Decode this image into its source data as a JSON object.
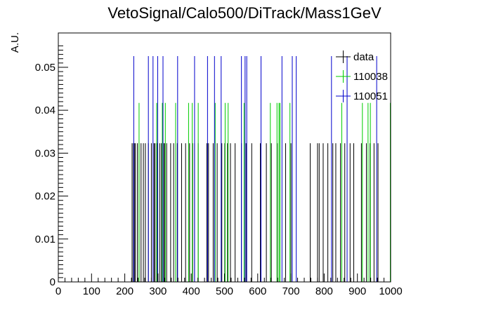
{
  "chart_data": {
    "type": "histogram",
    "title": "VetoSignal/Calo500/DiTrack/Mass1GeV",
    "ylabel": "A.U.",
    "xlabel": "",
    "xlim": [
      0,
      1000
    ],
    "ylim": [
      0,
      0.058
    ],
    "x_ticks": [
      "0",
      "100",
      "200",
      "300",
      "400",
      "500",
      "600",
      "700",
      "800",
      "900",
      "1000"
    ],
    "y_ticks": [
      "0",
      "0.01",
      "0.02",
      "0.03",
      "0.04",
      "0.05"
    ],
    "legend_position": "top-right",
    "series": [
      {
        "name": "data",
        "color": "#000000",
        "x": [
          222,
          226,
          229,
          232,
          238,
          243,
          249,
          256,
          262,
          271,
          280,
          288,
          291,
          298,
          305,
          310,
          318,
          321,
          326,
          338,
          347,
          358,
          371,
          383,
          395,
          404,
          410,
          421,
          447,
          452,
          466,
          478,
          492,
          501,
          509,
          518,
          532,
          551,
          565,
          582,
          608,
          626,
          641,
          659,
          684,
          700,
          758,
          780,
          785,
          797,
          811,
          826,
          835,
          849,
          862,
          878,
          889,
          912,
          927,
          938,
          950,
          962
        ],
        "values": [
          0.0323,
          0.0323,
          0.0323,
          0.0323,
          0.0323,
          0.0323,
          0.0323,
          0.0323,
          0.0323,
          0.0323,
          0.0323,
          0.0323,
          0.0323,
          0.0323,
          0.0323,
          0.0323,
          0.0323,
          0.0323,
          0.0323,
          0.0323,
          0.0323,
          0.0323,
          0.0323,
          0.0323,
          0.0323,
          0.0323,
          0.0323,
          0.0323,
          0.0323,
          0.0323,
          0.0323,
          0.0323,
          0.0323,
          0.0323,
          0.0323,
          0.0323,
          0.0323,
          0.0323,
          0.0323,
          0.0323,
          0.0323,
          0.0323,
          0.0323,
          0.0323,
          0.0323,
          0.0323,
          0.0323,
          0.0323,
          0.0323,
          0.0323,
          0.0323,
          0.0323,
          0.0323,
          0.0323,
          0.0323,
          0.0323,
          0.0323,
          0.0323,
          0.0323,
          0.0323,
          0.0323,
          0.0323
        ]
      },
      {
        "name": "110038",
        "color": "#00cc00",
        "x": [
          243,
          296,
          313,
          322,
          353,
          392,
          403,
          421,
          472,
          502,
          511,
          559,
          638,
          658,
          664,
          667,
          697,
          853,
          915,
          932,
          939,
          999
        ],
        "values": [
          0.0417,
          0.0417,
          0.0417,
          0.0417,
          0.0417,
          0.0417,
          0.0417,
          0.0417,
          0.0417,
          0.0417,
          0.0417,
          0.0417,
          0.0417,
          0.0417,
          0.0417,
          0.0417,
          0.0417,
          0.0417,
          0.0417,
          0.0417,
          0.0417,
          0.0417
        ]
      },
      {
        "name": "110051",
        "color": "#0000cc",
        "x": [
          227,
          271,
          285,
          299,
          315,
          359,
          410,
          449,
          470,
          490,
          551,
          562,
          567,
          610,
          673,
          704,
          716,
          822,
          869,
          958
        ],
        "values": [
          0.0526,
          0.0526,
          0.0526,
          0.0526,
          0.0526,
          0.0526,
          0.0526,
          0.0526,
          0.0526,
          0.0526,
          0.0526,
          0.0526,
          0.0526,
          0.0526,
          0.0526,
          0.0526,
          0.0526,
          0.0526,
          0.0526,
          0.0526
        ]
      }
    ]
  }
}
